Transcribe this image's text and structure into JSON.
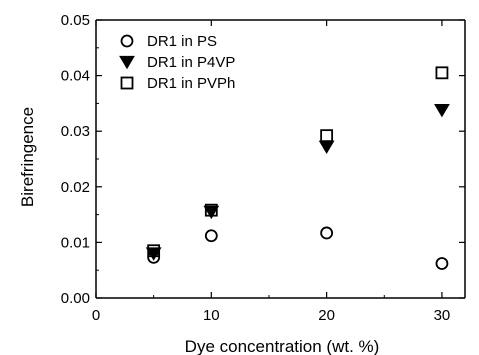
{
  "chart_data": {
    "type": "scatter",
    "xlabel": "Dye concentration (wt. %)",
    "ylabel": "Birefringence",
    "xlim": [
      0,
      32
    ],
    "ylim": [
      0,
      0.05
    ],
    "xticks": [
      0,
      10,
      20,
      30
    ],
    "xtick_labels": [
      "0",
      "10",
      "20",
      "30"
    ],
    "yticks": [
      0,
      0.01,
      0.02,
      0.03,
      0.04,
      0.05
    ],
    "ytick_labels": [
      "0.00",
      "0.01",
      "0.02",
      "0.03",
      "0.04",
      "0.05"
    ],
    "grid": false,
    "legend_position": "top-left",
    "series": [
      {
        "name": "DR1 in PS",
        "marker": "circle-open",
        "x": [
          5,
          10,
          20,
          30
        ],
        "y": [
          0.0073,
          0.0112,
          0.0117,
          0.0062
        ]
      },
      {
        "name": "DR1 in P4VP",
        "marker": "triangle-down-filled",
        "x": [
          5,
          10,
          20,
          30
        ],
        "y": [
          0.008,
          0.0155,
          0.0272,
          0.0338
        ]
      },
      {
        "name": "DR1 in PVPh",
        "marker": "square-open",
        "x": [
          5,
          10,
          20,
          30
        ],
        "y": [
          0.0085,
          0.0158,
          0.0292,
          0.0405
        ]
      }
    ]
  }
}
